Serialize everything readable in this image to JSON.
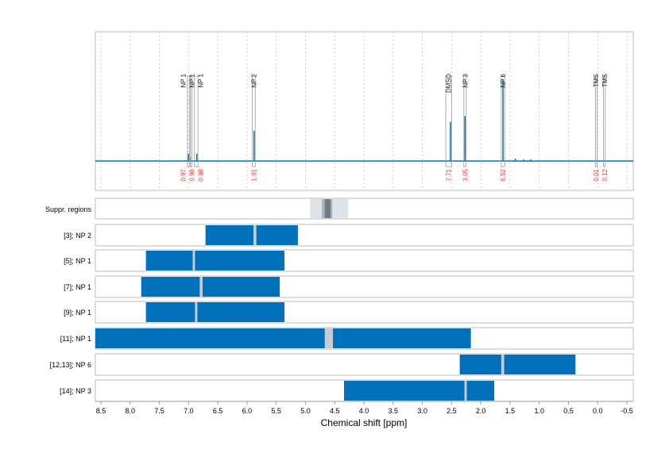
{
  "chart_data": {
    "type": "line",
    "xlabel": "Chemical shift [ppm]",
    "xlim": [
      8.6,
      -0.6
    ],
    "x_reversed": true,
    "grid": "vertical dotted",
    "xticks": [
      8.5,
      8.0,
      7.5,
      7.0,
      6.5,
      6.0,
      5.5,
      5.0,
      4.5,
      4.0,
      3.5,
      3.0,
      2.5,
      2.0,
      1.5,
      1.0,
      0.5,
      0.0,
      -0.5
    ],
    "xtick_labels": [
      "8.5",
      "8.0",
      "7.5",
      "7.0",
      "6.5",
      "6.0",
      "5.5",
      "5.0",
      "4.5",
      "4.0",
      "3.5",
      "3.0",
      "2.5",
      "2.0",
      "1.5",
      "1.0",
      "0.5",
      "0.0",
      "-0.5"
    ],
    "colors": {
      "spectrum": "#0070ba",
      "bar": "#0070ba",
      "integral": "#ff2a2a",
      "split": "#c8ccd0"
    },
    "spectrum_peaks": [
      {
        "ppm": 7.0,
        "intensity": 0.09
      },
      {
        "ppm": 6.97,
        "intensity": 0.05
      },
      {
        "ppm": 6.86,
        "intensity": 0.09
      },
      {
        "ppm": 5.88,
        "intensity": 0.37
      },
      {
        "ppm": 2.52,
        "intensity": 0.48
      },
      {
        "ppm": 2.27,
        "intensity": 0.55
      },
      {
        "ppm": 1.62,
        "intensity": 1.0
      },
      {
        "ppm": 1.41,
        "intensity": 0.03
      },
      {
        "ppm": 1.27,
        "intensity": 0.02
      },
      {
        "ppm": 1.15,
        "intensity": 0.02
      }
    ],
    "peak_annotations": [
      {
        "label": "NP 1",
        "ppm_from": 7.02,
        "ppm_to": 6.98,
        "integral": "0.97"
      },
      {
        "label": "NP 1",
        "ppm_from": 6.97,
        "ppm_to": 6.95,
        "integral": "0.98"
      },
      {
        "label": "NP 1",
        "ppm_from": 6.9,
        "ppm_to": 6.84,
        "integral": "0.98"
      },
      {
        "label": "NP 2",
        "ppm_from": 5.91,
        "ppm_to": 5.86,
        "integral": "1.91"
      },
      {
        "label": "DMSO",
        "ppm_from": 2.6,
        "ppm_to": 2.5,
        "integral": "7.71"
      },
      {
        "label": "NP 3",
        "ppm_from": 2.29,
        "ppm_to": 2.25,
        "integral": "3.05"
      },
      {
        "label": "NP 6",
        "ppm_from": 1.65,
        "ppm_to": 1.59,
        "integral": "6.52"
      },
      {
        "label": "TMS",
        "ppm_from": 0.04,
        "ppm_to": 0.01,
        "integral": "0.01"
      },
      {
        "label": "TMS",
        "ppm_from": -0.1,
        "ppm_to": -0.13,
        "integral": "0.12"
      }
    ],
    "suppression": {
      "label": "Suppr. regions",
      "outer": [
        4.92,
        4.27
      ],
      "middle": [
        4.72,
        4.54
      ],
      "inner": [
        4.67,
        4.57
      ]
    },
    "rows": [
      {
        "label": "[3]; NP 2",
        "from": 6.71,
        "to": 5.13,
        "split": [
          5.89,
          5.84
        ]
      },
      {
        "label": "[5]; NP 1",
        "from": 7.73,
        "to": 5.36,
        "split": [
          6.93,
          6.89
        ]
      },
      {
        "label": "[7]; NP 1",
        "from": 7.81,
        "to": 5.44,
        "split": [
          6.81,
          6.76
        ]
      },
      {
        "label": "[9]; NP 1",
        "from": 7.73,
        "to": 5.36,
        "split": [
          6.89,
          6.85
        ]
      },
      {
        "label": "[11]; NP 1",
        "from": 8.6,
        "to": 2.17,
        "split": [
          4.67,
          4.53
        ]
      },
      {
        "label": "[12,13]; NP 6",
        "from": 2.36,
        "to": 0.38,
        "split": [
          1.65,
          1.6
        ]
      },
      {
        "label": "[14]; NP 3",
        "from": 4.34,
        "to": 1.77,
        "split": [
          2.28,
          2.24
        ]
      }
    ]
  }
}
